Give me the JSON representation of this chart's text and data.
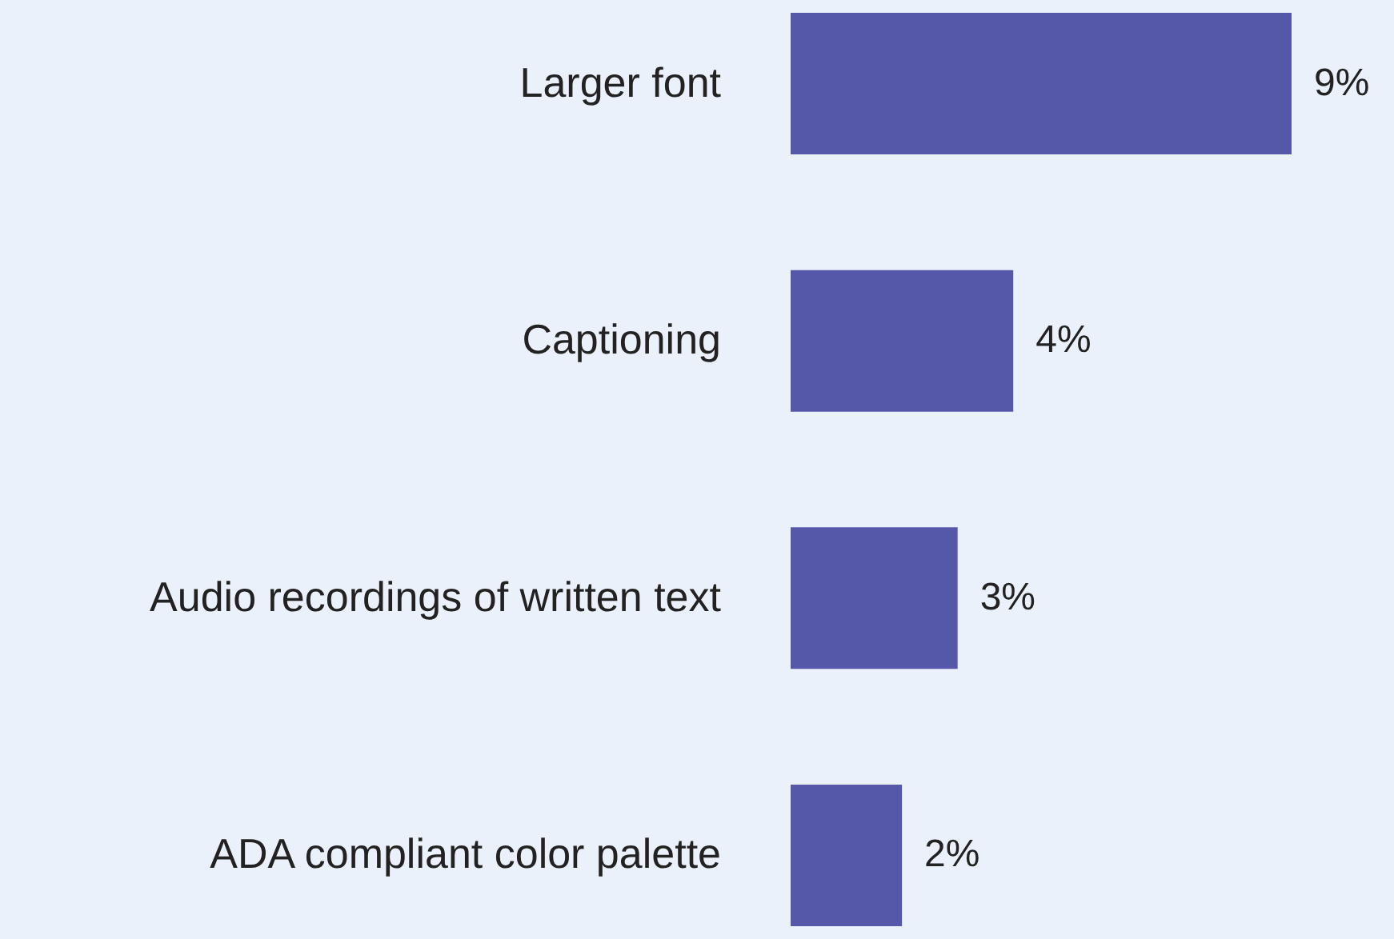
{
  "chart_data": {
    "type": "bar",
    "orientation": "horizontal",
    "categories": [
      "Larger font",
      "Captioning",
      "Audio recordings of written text",
      "ADA compliant color palette"
    ],
    "values": [
      9,
      4,
      3,
      2
    ],
    "value_labels": [
      "9%",
      "4%",
      "3%",
      "2%"
    ],
    "color": "#5558a8",
    "grid": false
  }
}
